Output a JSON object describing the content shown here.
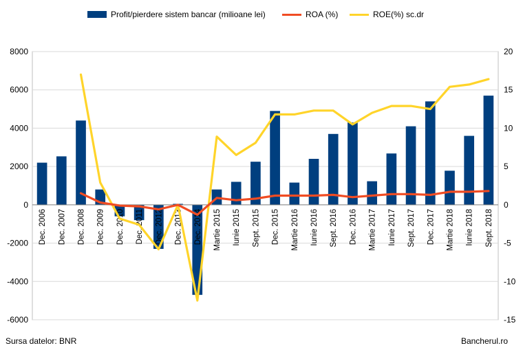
{
  "chart_data": {
    "type": "bar",
    "categories": [
      "Dec. 2006",
      "Dec. 2007",
      "Dec. 2008",
      "Dec. 2009",
      "Dec. 2010",
      "Dec. 2011",
      "Dec. 2012",
      "Dec. 2013",
      "Dec. 2014",
      "Martie 2015",
      "Iunie 2015",
      "Sept. 2015",
      "Dec. 2015",
      "Martie 2016",
      "Iunie 2016",
      "Sept. 2016",
      "Dec. 2016",
      "Martie 2017",
      "Iunie 2017",
      "Sept. 2017",
      "Dec. 2017",
      "Martie 2018",
      "Iunie 2018",
      "Sept. 2018"
    ],
    "series": [
      {
        "name": "Profit/pierdere sistem bancar (milioane lei)",
        "type": "bar",
        "axis": "left",
        "color": "#003f7f",
        "values": [
          2200,
          2530,
          4400,
          800,
          -600,
          -800,
          -2300,
          50,
          -4700,
          800,
          1200,
          2250,
          4900,
          1160,
          2400,
          3700,
          4300,
          1230,
          2680,
          4100,
          5400,
          1780,
          3600,
          5700
        ]
      },
      {
        "name": "ROA (%)",
        "type": "line",
        "axis": "right",
        "color": "#f04c23",
        "values": [
          null,
          null,
          1.5,
          0.3,
          -0.1,
          -0.2,
          -0.6,
          0.0,
          -1.3,
          0.9,
          0.6,
          0.8,
          1.2,
          1.2,
          1.2,
          1.3,
          1.0,
          1.2,
          1.4,
          1.4,
          1.3,
          1.7,
          1.7,
          1.8
        ]
      },
      {
        "name": "ROE(%) sc.dr",
        "type": "line",
        "axis": "right",
        "color": "#ffd42a",
        "values": [
          null,
          null,
          17.0,
          2.9,
          -1.8,
          -2.6,
          -5.8,
          0.0,
          -12.5,
          8.9,
          6.5,
          8.1,
          11.8,
          11.8,
          12.3,
          12.3,
          10.5,
          12.0,
          12.9,
          12.9,
          12.5,
          15.4,
          15.7,
          16.4
        ]
      }
    ],
    "y_left": {
      "min": -6000,
      "max": 8000,
      "step": 2000,
      "ticks": [
        "-6000",
        "-4000",
        "-2000",
        "0",
        "2000",
        "4000",
        "6000",
        "8000"
      ]
    },
    "y_right": {
      "min": -15,
      "max": 20,
      "step": 5,
      "ticks": [
        "-15",
        "-10",
        "-5",
        "0",
        "5",
        "10",
        "15",
        "20"
      ]
    },
    "grid": true,
    "legend_position": "top"
  },
  "legend": {
    "bar_label": "Profit/pierdere sistem bancar (milioane lei)",
    "roa_label": "ROA (%)",
    "roe_label": "ROE(%) sc.dr"
  },
  "footer": {
    "source": "Sursa datelor: BNR",
    "brand": "Bancherul.ro"
  },
  "colors": {
    "bar": "#003f7f",
    "roa": "#f04c23",
    "roe": "#ffd42a",
    "grid": "#d9d9d9"
  }
}
